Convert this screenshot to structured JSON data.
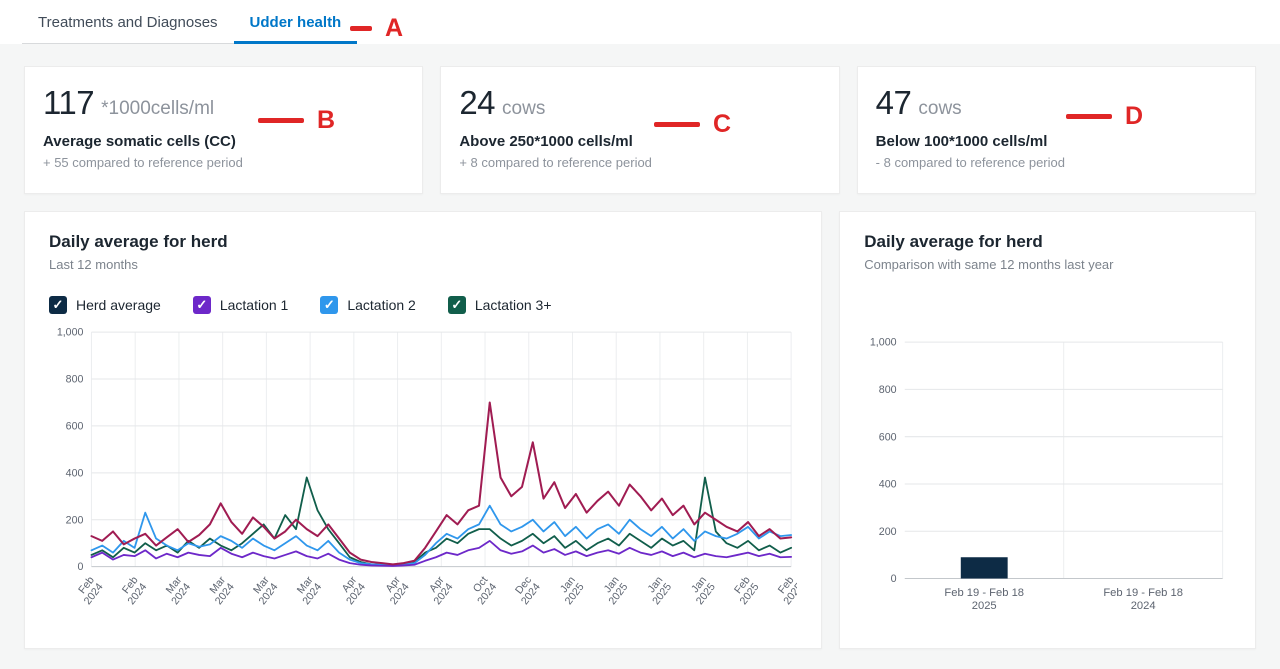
{
  "tabs": [
    {
      "label": "Treatments and Diagnoses",
      "active": false
    },
    {
      "label": "Udder health",
      "active": true
    }
  ],
  "cards": [
    {
      "value": "117",
      "unit": "*1000cells/ml",
      "title": "Average somatic cells (CC)",
      "delta": "+ 55 compared to reference period"
    },
    {
      "value": "24",
      "unit": "cows",
      "title": "Above 250*1000 cells/ml",
      "delta": "+ 8 compared to reference period"
    },
    {
      "value": "47",
      "unit": "cows",
      "title": "Below 100*1000 cells/ml",
      "delta": "- 8 compared to reference period"
    }
  ],
  "annotations": [
    {
      "label": "A"
    },
    {
      "label": "B"
    },
    {
      "label": "C"
    },
    {
      "label": "D"
    }
  ],
  "icons": {
    "checkbox_check": "✓"
  },
  "chart_data": [
    {
      "type": "line",
      "title": "Daily average for herd",
      "subtitle": "Last 12 months",
      "ylim": [
        0,
        1000
      ],
      "yticks": [
        0,
        200,
        400,
        600,
        800,
        1000
      ],
      "ytick_labels": [
        "0",
        "200",
        "400",
        "600",
        "800",
        "1,000"
      ],
      "grid": true,
      "legend_position": "top",
      "xticks": [
        {
          "l1": "Feb",
          "l2": "2024"
        },
        {
          "l1": "Feb",
          "l2": "2024"
        },
        {
          "l1": "Mar",
          "l2": "2024"
        },
        {
          "l1": "Mar",
          "l2": "2024"
        },
        {
          "l1": "Mar",
          "l2": "2024"
        },
        {
          "l1": "Mar",
          "l2": "2024"
        },
        {
          "l1": "Apr",
          "l2": "2024"
        },
        {
          "l1": "Apr",
          "l2": "2024"
        },
        {
          "l1": "Apr",
          "l2": "2024"
        },
        {
          "l1": "Oct",
          "l2": "2024"
        },
        {
          "l1": "Dec",
          "l2": "2024"
        },
        {
          "l1": "Jan",
          "l2": "2025"
        },
        {
          "l1": "Jan",
          "l2": "2025"
        },
        {
          "l1": "Jan",
          "l2": "2025"
        },
        {
          "l1": "Jan",
          "l2": "2025"
        },
        {
          "l1": "Feb",
          "l2": "2025"
        },
        {
          "l1": "Feb",
          "l2": "2025"
        }
      ],
      "series": [
        {
          "name": "Herd average",
          "legend_color": "#0d2b45",
          "color": "#a01c52",
          "values": [
            130,
            110,
            150,
            95,
            120,
            140,
            90,
            125,
            160,
            105,
            135,
            180,
            270,
            190,
            140,
            210,
            170,
            120,
            150,
            200,
            160,
            130,
            180,
            120,
            60,
            30,
            20,
            15,
            10,
            15,
            25,
            80,
            150,
            220,
            180,
            240,
            260,
            700,
            380,
            300,
            340,
            530,
            290,
            360,
            250,
            310,
            230,
            280,
            320,
            260,
            350,
            300,
            240,
            290,
            220,
            260,
            180,
            230,
            200,
            170,
            150,
            190,
            130,
            160,
            120,
            125
          ]
        },
        {
          "name": "Lactation 1",
          "legend_color": "#6d28c9",
          "color": "#6d28c9",
          "values": [
            40,
            60,
            30,
            50,
            45,
            70,
            35,
            55,
            40,
            60,
            50,
            45,
            80,
            55,
            40,
            60,
            45,
            35,
            50,
            65,
            45,
            35,
            55,
            30,
            15,
            8,
            5,
            4,
            3,
            5,
            8,
            25,
            40,
            60,
            50,
            70,
            80,
            110,
            70,
            55,
            65,
            90,
            60,
            75,
            50,
            65,
            45,
            60,
            70,
            55,
            80,
            60,
            50,
            65,
            45,
            60,
            40,
            55,
            45,
            40,
            50,
            60,
            45,
            55,
            40,
            42
          ]
        },
        {
          "name": "Lactation 2",
          "legend_color": "#2f97ec",
          "color": "#2f97ec",
          "values": [
            70,
            90,
            60,
            110,
            80,
            230,
            120,
            90,
            70,
            100,
            85,
            95,
            130,
            110,
            80,
            120,
            90,
            70,
            100,
            130,
            90,
            70,
            110,
            60,
            30,
            15,
            10,
            8,
            5,
            10,
            15,
            50,
            100,
            140,
            120,
            160,
            180,
            260,
            180,
            150,
            170,
            200,
            150,
            190,
            130,
            170,
            120,
            160,
            180,
            140,
            200,
            160,
            130,
            170,
            120,
            160,
            110,
            150,
            130,
            120,
            140,
            170,
            120,
            150,
            130,
            135
          ]
        },
        {
          "name": "Lactation 3+",
          "legend_color": "#115e4b",
          "color": "#115e4b",
          "values": [
            50,
            70,
            40,
            80,
            60,
            100,
            70,
            90,
            60,
            110,
            80,
            120,
            90,
            70,
            100,
            140,
            180,
            120,
            220,
            160,
            380,
            240,
            160,
            100,
            40,
            20,
            10,
            8,
            6,
            10,
            20,
            60,
            80,
            120,
            100,
            140,
            160,
            160,
            120,
            90,
            110,
            140,
            100,
            130,
            80,
            110,
            70,
            100,
            120,
            90,
            140,
            110,
            80,
            120,
            90,
            110,
            70,
            380,
            150,
            100,
            80,
            110,
            70,
            90,
            60,
            80
          ]
        }
      ]
    },
    {
      "type": "bar",
      "title": "Daily average for herd",
      "subtitle": "Comparison with same 12 months last year",
      "ylim": [
        0,
        1000
      ],
      "yticks": [
        0,
        200,
        400,
        600,
        800,
        1000
      ],
      "ytick_labels": [
        "0",
        "200",
        "400",
        "600",
        "800",
        "1,000"
      ],
      "bar_color": "#0d2b45",
      "categories": [
        {
          "l1": "Feb 19 - Feb 18",
          "l2": "2025"
        },
        {
          "l1": "Feb 19 - Feb 18",
          "l2": "2024"
        }
      ],
      "values": [
        90,
        0
      ]
    }
  ]
}
